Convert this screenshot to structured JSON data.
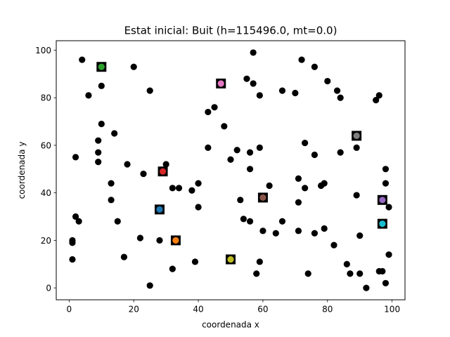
{
  "chart_data": {
    "type": "scatter",
    "title": "Estat inicial: Buit (h=115496.0, mt=0.0)",
    "xlabel": "coordenada x",
    "ylabel": "coordenada y",
    "xlim": [
      -4,
      104
    ],
    "ylim": [
      -5,
      104
    ],
    "xticks": [
      0,
      20,
      40,
      60,
      80,
      100
    ],
    "yticks": [
      0,
      20,
      40,
      60,
      80,
      100
    ],
    "xtick_labels": [
      "0",
      "20",
      "40",
      "60",
      "80",
      "100"
    ],
    "ytick_labels": [
      "0",
      "20",
      "40",
      "60",
      "80",
      "100"
    ],
    "grid": false,
    "legend": "none",
    "series": [
      {
        "marker": "circle",
        "color": "#000000",
        "points": [
          [
            4,
            96
          ],
          [
            6,
            81
          ],
          [
            10,
            85
          ],
          [
            10,
            69
          ],
          [
            14,
            65
          ],
          [
            9,
            62
          ],
          [
            9,
            57
          ],
          [
            9,
            53
          ],
          [
            2,
            55
          ],
          [
            20,
            93
          ],
          [
            25,
            83
          ],
          [
            18,
            52
          ],
          [
            13,
            44
          ],
          [
            13,
            37
          ],
          [
            23,
            48
          ],
          [
            15,
            28
          ],
          [
            2,
            30
          ],
          [
            3,
            28
          ],
          [
            1,
            20
          ],
          [
            1,
            19
          ],
          [
            1,
            12
          ],
          [
            17,
            13
          ],
          [
            22,
            21
          ],
          [
            28,
            20
          ],
          [
            25,
            1
          ],
          [
            32,
            8
          ],
          [
            30,
            52
          ],
          [
            32,
            42
          ],
          [
            34,
            42
          ],
          [
            38,
            41
          ],
          [
            40,
            44
          ],
          [
            40,
            34
          ],
          [
            39,
            11
          ],
          [
            43,
            74
          ],
          [
            45,
            76
          ],
          [
            43,
            59
          ],
          [
            48,
            68
          ],
          [
            50,
            54
          ],
          [
            52,
            58
          ],
          [
            56,
            57
          ],
          [
            56,
            50
          ],
          [
            57,
            99
          ],
          [
            55,
            88
          ],
          [
            57,
            86
          ],
          [
            59,
            81
          ],
          [
            59,
            59
          ],
          [
            62,
            43
          ],
          [
            53,
            37
          ],
          [
            54,
            29
          ],
          [
            56,
            28
          ],
          [
            60,
            24
          ],
          [
            64,
            23
          ],
          [
            66,
            28
          ],
          [
            59,
            11
          ],
          [
            58,
            6
          ],
          [
            66,
            83
          ],
          [
            70,
            82
          ],
          [
            72,
            96
          ],
          [
            76,
            93
          ],
          [
            73,
            61
          ],
          [
            76,
            56
          ],
          [
            71,
            46
          ],
          [
            73,
            42
          ],
          [
            71,
            36
          ],
          [
            71,
            24
          ],
          [
            76,
            23
          ],
          [
            79,
            25
          ],
          [
            74,
            6
          ],
          [
            78,
            43
          ],
          [
            79,
            44
          ],
          [
            80,
            87
          ],
          [
            83,
            83
          ],
          [
            84,
            80
          ],
          [
            84,
            57
          ],
          [
            89,
            59
          ],
          [
            89,
            39
          ],
          [
            82,
            18
          ],
          [
            86,
            10
          ],
          [
            87,
            6
          ],
          [
            90,
            22
          ],
          [
            90,
            6
          ],
          [
            92,
            0
          ],
          [
            95,
            79
          ],
          [
            96,
            81
          ],
          [
            98,
            50
          ],
          [
            98,
            44
          ],
          [
            99,
            34
          ],
          [
            99,
            14
          ],
          [
            96,
            7
          ],
          [
            97,
            7
          ],
          [
            98,
            2
          ]
        ]
      }
    ],
    "highlighted_points": [
      {
        "x": 10,
        "y": 93,
        "color": "#2ca02c"
      },
      {
        "x": 47,
        "y": 86,
        "color": "#e377c2"
      },
      {
        "x": 89,
        "y": 64,
        "color": "#7f7f7f"
      },
      {
        "x": 29,
        "y": 49,
        "color": "#d62728"
      },
      {
        "x": 60,
        "y": 38,
        "color": "#8c564b"
      },
      {
        "x": 28,
        "y": 33,
        "color": "#1f77b4"
      },
      {
        "x": 97,
        "y": 37,
        "color": "#9467bd"
      },
      {
        "x": 33,
        "y": 20,
        "color": "#ff7f0e"
      },
      {
        "x": 97,
        "y": 27,
        "color": "#17becf"
      },
      {
        "x": 50,
        "y": 12,
        "color": "#bcbd22"
      }
    ],
    "highlight_frame_color": "#000000"
  }
}
